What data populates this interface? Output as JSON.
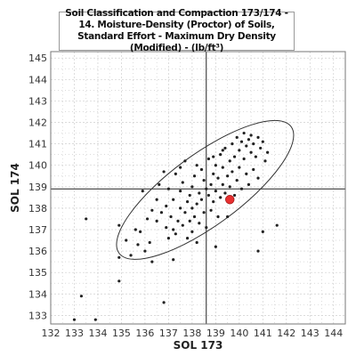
{
  "chart_data": {
    "type": "scatter",
    "title": "Soil Classification and Compaction 173/174 - 14. Moisture-Density (Proctor) of Soils, Standard Effort - Maximum Dry Density (Modified) - (lb/ft³)",
    "xlabel": "SOL 173",
    "ylabel": "SOL 174",
    "xlim": [
      132,
      144.5
    ],
    "ylim": [
      132.6,
      145.3
    ],
    "xticks": [
      132,
      133,
      134,
      135,
      136,
      137,
      138,
      139,
      140,
      141,
      142,
      143,
      144
    ],
    "yticks": [
      133,
      134,
      135,
      136,
      137,
      138,
      139,
      140,
      141,
      142,
      143,
      144,
      145
    ],
    "grid": true,
    "reference_lines": {
      "x": 138.6,
      "y": 138.9
    },
    "highlight_point": {
      "x": 139.6,
      "y": 138.4
    },
    "colors": {
      "points": "#222222",
      "highlight": "#e83030",
      "grid": "#cfcfcf",
      "reference": "#222222",
      "ellipse": "#333333"
    },
    "confidence_ellipse": {
      "center": [
        138.6,
        138.9
      ],
      "points": [
        [
          142.2,
          141.8
        ],
        [
          134.9,
          135.9
        ],
        [
          137.8,
          140.3
        ],
        [
          139.4,
          137.5
        ]
      ]
    },
    "points": [
      [
        133.0,
        132.8
      ],
      [
        133.3,
        133.9
      ],
      [
        133.5,
        137.5
      ],
      [
        133.9,
        132.8
      ],
      [
        134.9,
        134.6
      ],
      [
        134.9,
        135.7
      ],
      [
        134.9,
        137.2
      ],
      [
        135.2,
        136.5
      ],
      [
        135.4,
        135.8
      ],
      [
        135.6,
        137.0
      ],
      [
        135.7,
        136.3
      ],
      [
        135.8,
        136.9
      ],
      [
        135.9,
        138.8
      ],
      [
        136.0,
        136.0
      ],
      [
        136.1,
        137.5
      ],
      [
        136.2,
        136.4
      ],
      [
        136.3,
        137.9
      ],
      [
        136.3,
        135.5
      ],
      [
        136.5,
        137.4
      ],
      [
        136.5,
        138.4
      ],
      [
        136.6,
        139.1
      ],
      [
        136.7,
        137.8
      ],
      [
        136.8,
        133.6
      ],
      [
        136.9,
        137.1
      ],
      [
        136.9,
        138.1
      ],
      [
        137.0,
        136.6
      ],
      [
        137.0,
        138.9
      ],
      [
        137.1,
        137.6
      ],
      [
        137.2,
        138.4
      ],
      [
        137.2,
        137.0
      ],
      [
        137.3,
        139.6
      ],
      [
        137.3,
        136.8
      ],
      [
        137.4,
        137.4
      ],
      [
        137.5,
        138.0
      ],
      [
        137.5,
        138.8
      ],
      [
        137.6,
        137.2
      ],
      [
        137.6,
        139.2
      ],
      [
        137.7,
        137.8
      ],
      [
        137.7,
        140.2
      ],
      [
        137.8,
        138.3
      ],
      [
        137.8,
        136.6
      ],
      [
        137.9,
        138.6
      ],
      [
        137.9,
        137.4
      ],
      [
        138.0,
        139.0
      ],
      [
        138.0,
        138.0
      ],
      [
        138.1,
        137.6
      ],
      [
        138.1,
        139.5
      ],
      [
        138.2,
        138.2
      ],
      [
        138.2,
        136.4
      ],
      [
        138.3,
        138.7
      ],
      [
        138.3,
        137.3
      ],
      [
        138.4,
        139.8
      ],
      [
        138.4,
        138.4
      ],
      [
        138.5,
        137.8
      ],
      [
        138.5,
        139.3
      ],
      [
        138.6,
        138.9
      ],
      [
        138.6,
        137.1
      ],
      [
        138.7,
        138.6
      ],
      [
        138.7,
        140.3
      ],
      [
        138.8,
        139.1
      ],
      [
        138.8,
        137.9
      ],
      [
        138.9,
        139.6
      ],
      [
        138.9,
        138.3
      ],
      [
        139.0,
        140.0
      ],
      [
        139.0,
        138.8
      ],
      [
        139.1,
        139.4
      ],
      [
        139.1,
        137.6
      ],
      [
        139.2,
        140.5
      ],
      [
        139.2,
        138.5
      ],
      [
        139.3,
        139.1
      ],
      [
        139.3,
        139.9
      ],
      [
        139.4,
        138.7
      ],
      [
        139.4,
        140.8
      ],
      [
        139.5,
        139.5
      ],
      [
        139.5,
        137.6
      ],
      [
        139.6,
        140.2
      ],
      [
        139.6,
        139.0
      ],
      [
        139.7,
        141.0
      ],
      [
        139.7,
        139.7
      ],
      [
        139.8,
        140.4
      ],
      [
        139.8,
        138.6
      ],
      [
        139.9,
        141.3
      ],
      [
        139.9,
        139.3
      ],
      [
        140.0,
        140.7
      ],
      [
        140.0,
        139.9
      ],
      [
        140.1,
        141.1
      ],
      [
        140.1,
        138.9
      ],
      [
        140.2,
        140.3
      ],
      [
        140.2,
        141.5
      ],
      [
        140.3,
        139.6
      ],
      [
        140.3,
        140.9
      ],
      [
        140.4,
        141.2
      ],
      [
        140.4,
        139.1
      ],
      [
        140.5,
        140.6
      ],
      [
        140.5,
        141.4
      ],
      [
        140.6,
        139.8
      ],
      [
        140.6,
        141.0
      ],
      [
        140.7,
        140.4
      ],
      [
        140.8,
        141.3
      ],
      [
        140.8,
        139.4
      ],
      [
        140.9,
        140.8
      ],
      [
        141.0,
        141.1
      ],
      [
        141.0,
        136.9
      ],
      [
        141.1,
        140.2
      ],
      [
        141.2,
        140.6
      ],
      [
        139.3,
        140.7
      ],
      [
        138.9,
        140.4
      ],
      [
        138.2,
        140.0
      ],
      [
        137.5,
        139.9
      ],
      [
        136.8,
        139.7
      ],
      [
        138.0,
        136.9
      ],
      [
        139.0,
        136.2
      ],
      [
        137.2,
        135.6
      ],
      [
        140.8,
        136.0
      ],
      [
        141.6,
        137.2
      ]
    ]
  }
}
